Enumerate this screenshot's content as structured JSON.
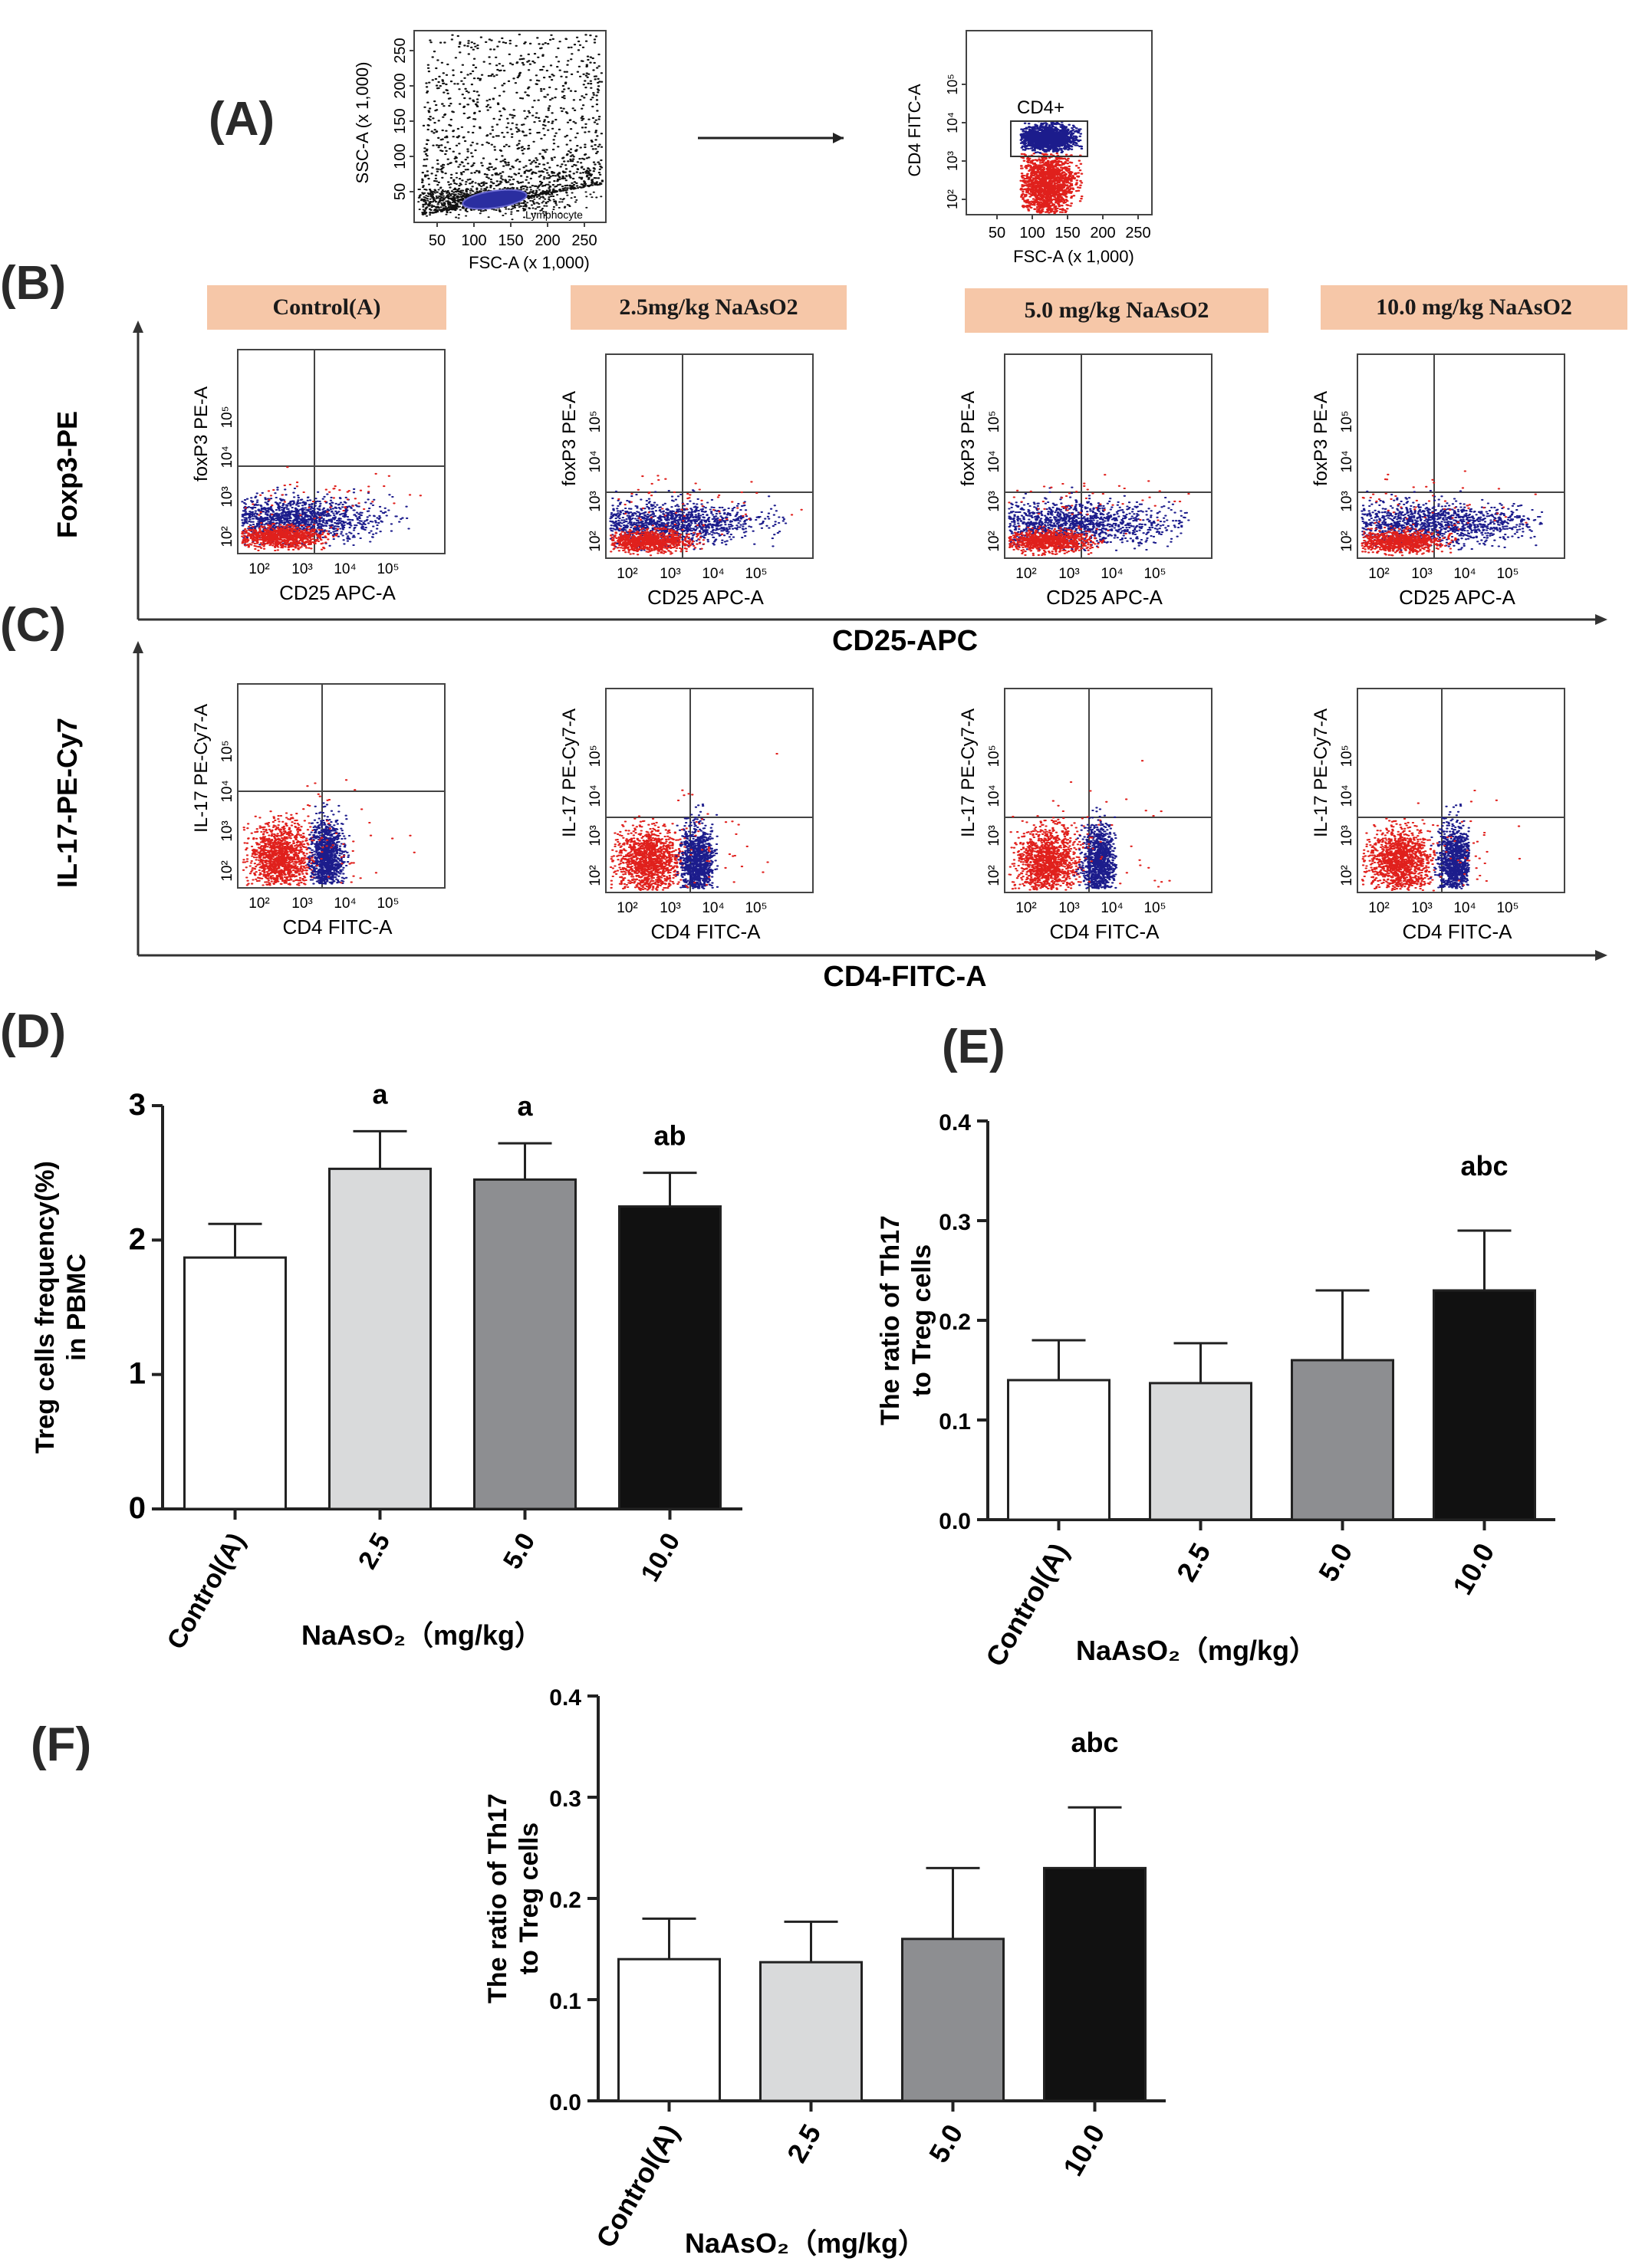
{
  "panel_letters": [
    "(A)",
    "(B)",
    "(C)",
    "(D)",
    "(E)",
    "(F)"
  ],
  "panel_a": {
    "plot1": {
      "y_label": "SSC-A (x 1,000)",
      "x_label": "FSC-A (x 1,000)",
      "x_ticks": [
        "50",
        "100",
        "150",
        "200",
        "250"
      ],
      "y_ticks": [
        "50",
        "100",
        "150",
        "200",
        "250"
      ],
      "gate_label": "Lymphocyte"
    },
    "plot2": {
      "y_label": "CD4 FITC-A",
      "x_label": "FSC-A (x 1,000)",
      "x_ticks": [
        "50",
        "100",
        "150",
        "200",
        "250"
      ],
      "gate_label": "CD4+"
    }
  },
  "panel_b": {
    "groups": [
      "Control(A)",
      "2.5mg/kg NaAsO2",
      "5.0 mg/kg NaAsO2",
      "10.0 mg/kg NaAsO2"
    ],
    "y_axis_title": "Foxp3-PE",
    "x_axis_title": "CD25-APC",
    "plot_y_label": "foxP3 PE-A",
    "plot_x_label": "CD25 APC-A"
  },
  "panel_c": {
    "y_axis_title": "IL-17-PE-Cy7",
    "x_axis_title": "CD4-FITC-A",
    "plot_y_label": "IL-17 PE-Cy7-A",
    "plot_x_label": "CD4 FITC-A"
  },
  "log_ticks": [
    "10²",
    "10³",
    "10⁴",
    "10⁵"
  ],
  "colors": {
    "red_pop": "#e0201c",
    "blue_pop": "#1c1c8c",
    "tag_bg": "#f6c7a8",
    "bar_fills": [
      "#ffffff",
      "#d9dadb",
      "#8d8e91",
      "#111111"
    ]
  },
  "chart_data": [
    {
      "type": "bar",
      "panel": "(D)",
      "categories": [
        "Control(A)",
        "2.5",
        "5.0",
        "10.0"
      ],
      "values": [
        1.87,
        2.53,
        2.45,
        2.25
      ],
      "errors": [
        0.25,
        0.28,
        0.27,
        0.25
      ],
      "annotations": [
        "",
        "a",
        "a",
        "ab"
      ],
      "ylim": [
        0,
        3
      ],
      "y_ticks": [
        "0",
        "1",
        "2",
        "3"
      ],
      "ylabel_line1": "Treg cells frequency(%)",
      "ylabel_line2": "in PBMC",
      "xlabel": "NaAsO₂（mg/kg）"
    },
    {
      "type": "bar",
      "panel": "(E)",
      "categories": [
        "Control(A)",
        "2.5",
        "5.0",
        "10.0"
      ],
      "values": [
        0.14,
        0.137,
        0.16,
        0.23
      ],
      "errors": [
        0.04,
        0.04,
        0.07,
        0.06
      ],
      "annotations": [
        "",
        "",
        "",
        "abc"
      ],
      "ylim": [
        0,
        0.4
      ],
      "y_ticks": [
        "0.0",
        "0.1",
        "0.2",
        "0.3",
        "0.4"
      ],
      "ylabel_line1": "The ratio of Th17",
      "ylabel_line2": "to Treg cells",
      "xlabel": "NaAsO₂（mg/kg）"
    },
    {
      "type": "bar",
      "panel": "(F)",
      "categories": [
        "Control(A)",
        "2.5",
        "5.0",
        "10.0"
      ],
      "values": [
        0.14,
        0.137,
        0.16,
        0.23
      ],
      "errors": [
        0.04,
        0.04,
        0.07,
        0.06
      ],
      "annotations": [
        "",
        "",
        "",
        "abc"
      ],
      "ylim": [
        0,
        0.4
      ],
      "y_ticks": [
        "0.0",
        "0.1",
        "0.2",
        "0.3",
        "0.4"
      ],
      "ylabel_line1": "The ratio of Th17",
      "ylabel_line2": "to Treg cells",
      "xlabel": "NaAsO₂（mg/kg）"
    }
  ]
}
